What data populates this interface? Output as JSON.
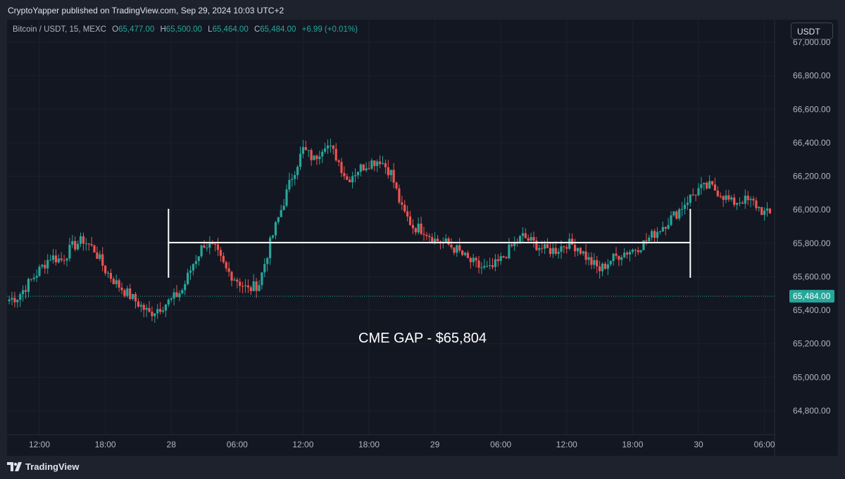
{
  "header": {
    "published_text": "CryptoYapper published on TradingView.com, Sep 29, 2024 10:03 UTC+2"
  },
  "legend": {
    "symbol": "Bitcoin / USDT, 15, MEXC",
    "open_label": "O",
    "open": "65,477.00",
    "high_label": "H",
    "high": "65,500.00",
    "low_label": "L",
    "low": "65,464.00",
    "close_label": "C",
    "close": "65,484.00",
    "change": "+6.99 (+0.01%)"
  },
  "currency_button": "USDT",
  "footer": {
    "brand": "TradingView",
    "logo_icon": "tradingview-logo-icon"
  },
  "colors": {
    "up": "#26a69a",
    "down": "#ef5350",
    "background": "#131722",
    "annotation": "#ffffff"
  },
  "chart_data": {
    "type": "candlestick",
    "title": "",
    "ylim": [
      64700,
      67000
    ],
    "y_ticks": [
      64800,
      65000,
      65200,
      65400,
      65600,
      65800,
      66000,
      66200,
      66400,
      66600,
      66800,
      67000
    ],
    "y_tick_labels": [
      "64,800.00",
      "65,000.00",
      "65,200.00",
      "65,400.00",
      "65,600.00",
      "65,800.00",
      "66,000.00",
      "66,200.00",
      "66,400.00",
      "66,600.00",
      "66,800.00",
      "67,000.00"
    ],
    "x_tick_labels": [
      "12:00",
      "18:00",
      "28",
      "06:00",
      "12:00",
      "18:00",
      "29",
      "06:00",
      "12:00",
      "18:00",
      "30",
      "06:00"
    ],
    "last_price": 65484,
    "last_price_label": "65,484.00",
    "annotation": {
      "text": "CME GAP - $65,804",
      "level": 65804,
      "start_time": "Sep 27 23:45",
      "end_time": "Sep 29 23:15"
    },
    "candles_start_time": "Sep 27 09:15",
    "candles_interval": "15",
    "close_path": [
      65480,
      65560,
      65640,
      65720,
      65700,
      65780,
      65820,
      65760,
      65640,
      65560,
      65500,
      65440,
      65380,
      65420,
      65460,
      65520,
      65680,
      65800,
      65760,
      65640,
      65580,
      65520,
      65560,
      65800,
      66000,
      66200,
      66360,
      66300,
      66400,
      66320,
      66180,
      66240,
      66280,
      66300,
      66220,
      66000,
      65900,
      65880,
      65820,
      65800,
      65760,
      65700,
      65660,
      65640,
      65700,
      65780,
      65840,
      65800,
      65760,
      65760,
      65800,
      65780,
      65700,
      65640,
      65700,
      65740,
      65760,
      65800,
      65860,
      65920,
      65980,
      66060,
      66120,
      66140,
      66100,
      66040,
      66060,
      66040,
      65980,
      65960,
      65920,
      65900,
      65860,
      65820,
      65780,
      65820,
      65860,
      65800,
      65740,
      65680,
      65620,
      65580,
      65560,
      65600,
      65640,
      65700,
      65760,
      65780,
      65760,
      65720,
      65700,
      65660,
      65600,
      65520,
      65500,
      65540,
      65600,
      65680,
      65720,
      65760,
      65720,
      65660,
      65600,
      65580,
      65620,
      65680,
      65720,
      65760,
      65780,
      65760,
      65740,
      65720,
      65700,
      65680,
      65640,
      65600,
      65580,
      65600,
      65640,
      65660,
      65700,
      65740,
      65780,
      65760,
      65740,
      65760,
      65760,
      65740,
      65720,
      65700,
      65660,
      65640,
      65620,
      65600,
      65640,
      65680,
      65660,
      65640,
      65680,
      65720,
      65760,
      65740,
      65700,
      65720,
      65760,
      65820,
      65860,
      65880,
      65860,
      65800,
      65760,
      65760,
      65740,
      65720,
      65700,
      65640,
      65580,
      65540,
      65520,
      65500,
      65480,
      65484
    ]
  }
}
